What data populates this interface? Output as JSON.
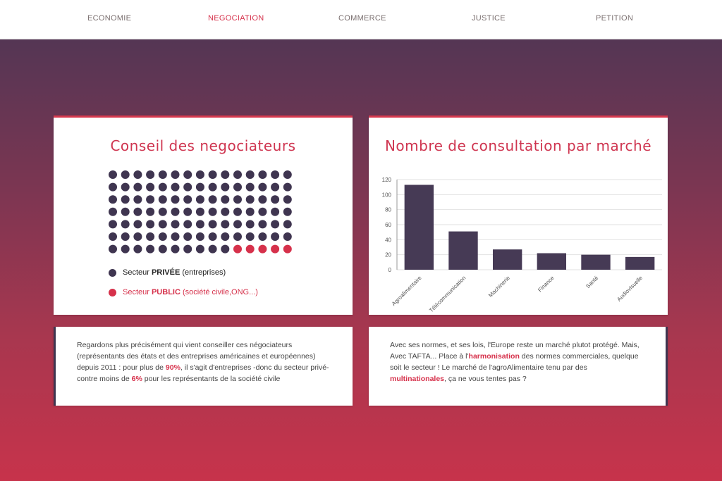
{
  "nav": {
    "items": [
      "ECONOMIE",
      "NEGOCIATION",
      "COMMERCE",
      "JUSTICE",
      "PETITION"
    ],
    "active": "NEGOCIATION"
  },
  "council": {
    "title": "Conseil des negociateurs",
    "total_dots": 105,
    "public_dots": 5,
    "legend_private_prefix": "Secteur ",
    "legend_private_bold": "PRIVÉE",
    "legend_private_suffix": " (entreprises)",
    "legend_public_prefix": "Secteur ",
    "legend_public_bold": "PUBLIC",
    "legend_public_suffix": " (société civile,ONG...)"
  },
  "colors": {
    "private": "#3f3550",
    "public": "#d6314b",
    "bar": "#463a55",
    "accent": "#d63a4f"
  },
  "consultation": {
    "title": "Nombre de consultation par marché"
  },
  "chart_data": {
    "type": "bar",
    "title": "Nombre de consultation par marché",
    "categories": [
      "Agroalimentaire",
      "Télécommunication",
      "Machinerie",
      "Finance",
      "Santé",
      "Audiovisuelle"
    ],
    "values": [
      113,
      51,
      27,
      22,
      20,
      17
    ],
    "xlabel": "",
    "ylabel": "",
    "ylim": [
      0,
      120
    ],
    "yticks": [
      0,
      20,
      40,
      60,
      80,
      100,
      120
    ],
    "grid": true
  },
  "text_left": {
    "part1": "Regardons plus précisément qui vient conseiller ces négociateurs (représentants des états et des entreprises américaines et européennes) depuis 2011 : pour plus de ",
    "hl1": "90%",
    "part2": ", il s'agit d'entreprises -donc du secteur privé- contre moins de ",
    "hl2": "6%",
    "part3": " pour les représentants de la société civile"
  },
  "text_right": {
    "part1": "Avec ses normes, et ses lois, l'Europe reste un marché plutot protégé. Mais, Avec TAFTA... Place à l'",
    "hl1": "harmonisation",
    "part2": " des normes commerciales, quelque soit le secteur ! Le marché de l'agroAlimentaire tenu par des ",
    "hl2": "multinationales",
    "part3": ", ça ne vous tentes pas ?"
  }
}
